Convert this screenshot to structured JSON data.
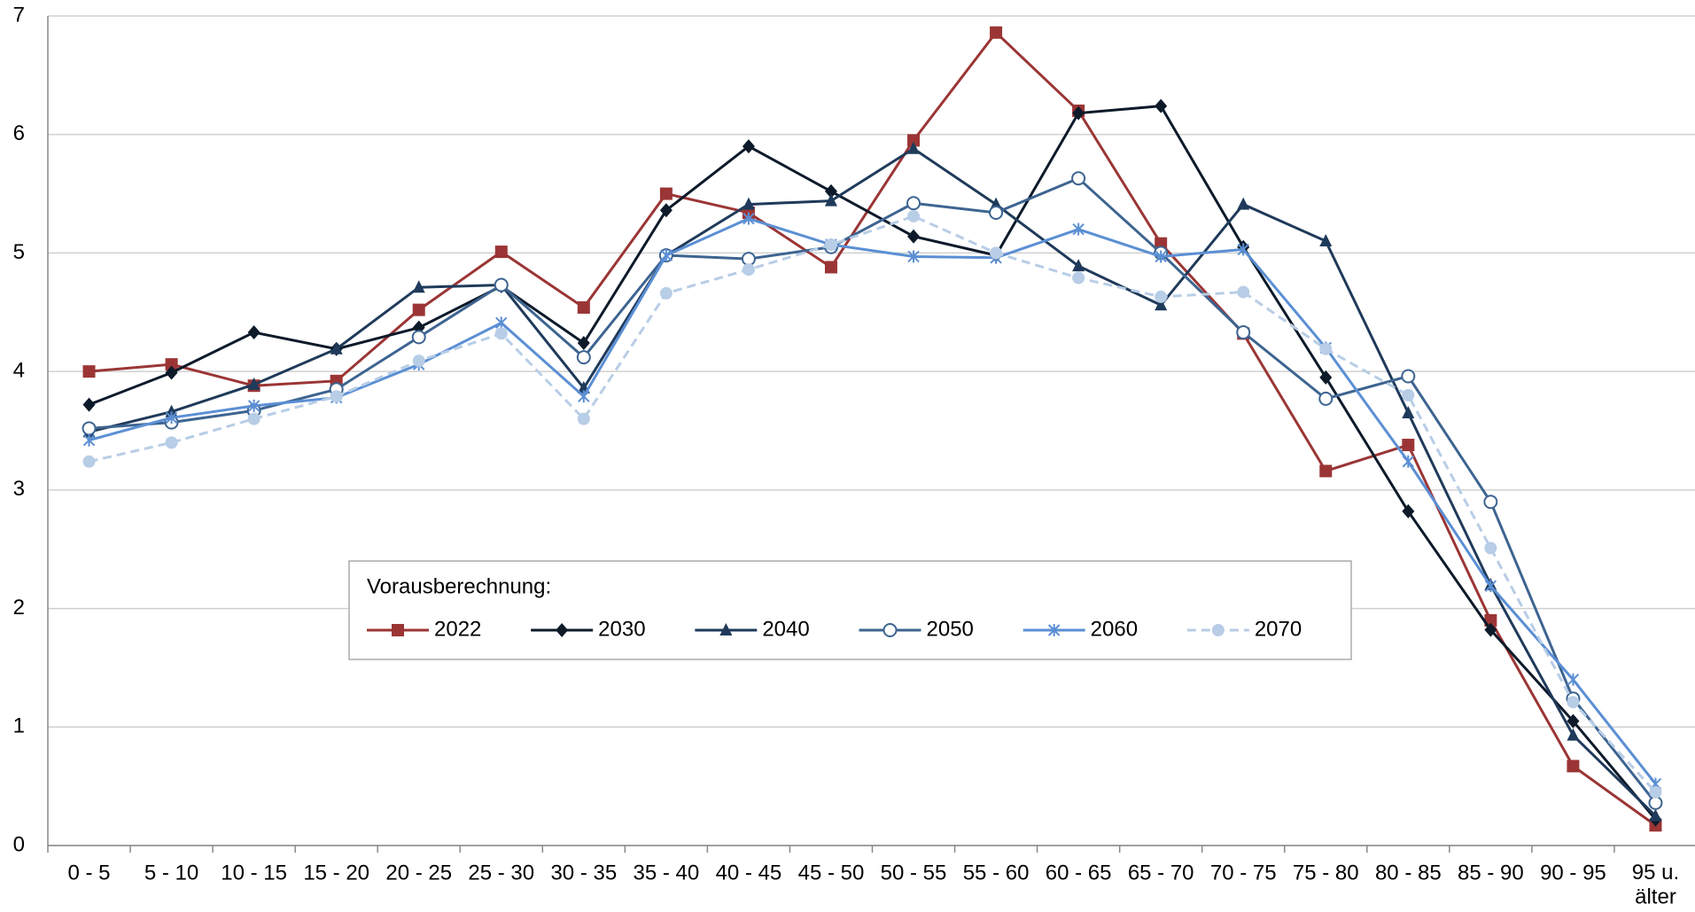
{
  "chart_data": {
    "type": "line",
    "categories": [
      "0 - 5",
      "5 - 10",
      "10 - 15",
      "15 - 20",
      "20 - 25",
      "25 - 30",
      "30 - 35",
      "35 - 40",
      "40 - 45",
      "45 - 50",
      "50 - 55",
      "55 - 60",
      "60 - 65",
      "65 - 70",
      "70 - 75",
      "75 - 80",
      "80 - 85",
      "85 - 90",
      "90 - 95",
      "95 u.\nälter"
    ],
    "legend_title": "Vorausberechnung:",
    "series": [
      {
        "name": "2022",
        "color": "#9b3535",
        "marker": "square",
        "values": [
          4.0,
          4.06,
          3.88,
          3.92,
          4.52,
          5.01,
          4.54,
          5.5,
          5.34,
          4.88,
          5.95,
          6.86,
          6.2,
          5.08,
          4.32,
          3.16,
          3.38,
          1.9,
          0.67,
          0.17
        ]
      },
      {
        "name": "2030",
        "color": "#0d1a2a",
        "marker": "diamond",
        "values": [
          3.72,
          3.99,
          4.33,
          4.19,
          4.37,
          4.72,
          4.24,
          5.36,
          5.9,
          5.52,
          5.14,
          4.98,
          6.18,
          6.24,
          5.05,
          3.95,
          2.82,
          1.82,
          1.05,
          0.22
        ]
      },
      {
        "name": "2040",
        "color": "#1f3a5a",
        "marker": "triangle",
        "values": [
          3.49,
          3.66,
          3.89,
          4.19,
          4.71,
          4.73,
          3.86,
          4.98,
          5.41,
          5.44,
          5.88,
          5.41,
          4.89,
          4.56,
          5.41,
          5.1,
          3.65,
          2.2,
          0.93,
          0.25
        ]
      },
      {
        "name": "2050",
        "color": "#3d6490",
        "marker": "circle",
        "values": [
          3.52,
          3.57,
          3.67,
          3.85,
          4.29,
          4.73,
          4.12,
          4.98,
          4.95,
          5.05,
          5.42,
          5.34,
          5.63,
          5.0,
          4.33,
          3.77,
          3.96,
          2.9,
          1.24,
          0.36
        ]
      },
      {
        "name": "2060",
        "color": "#5b8fd4",
        "marker": "x",
        "values": [
          3.42,
          3.61,
          3.71,
          3.78,
          4.06,
          4.41,
          3.79,
          4.98,
          5.29,
          5.07,
          4.97,
          4.96,
          5.2,
          4.97,
          5.03,
          4.2,
          3.24,
          2.19,
          1.4,
          0.52
        ]
      },
      {
        "name": "2070",
        "color": "#b8cde6",
        "marker": "dot",
        "dashed": true,
        "values": [
          3.24,
          3.4,
          3.6,
          3.79,
          4.09,
          4.32,
          3.6,
          4.66,
          4.86,
          5.07,
          5.31,
          5.0,
          4.79,
          4.63,
          4.67,
          4.19,
          3.8,
          2.51,
          1.21,
          0.45
        ]
      }
    ],
    "ylim": [
      0,
      7
    ],
    "yticks": [
      0,
      1,
      2,
      3,
      4,
      5,
      6,
      7
    ],
    "grid": true
  }
}
